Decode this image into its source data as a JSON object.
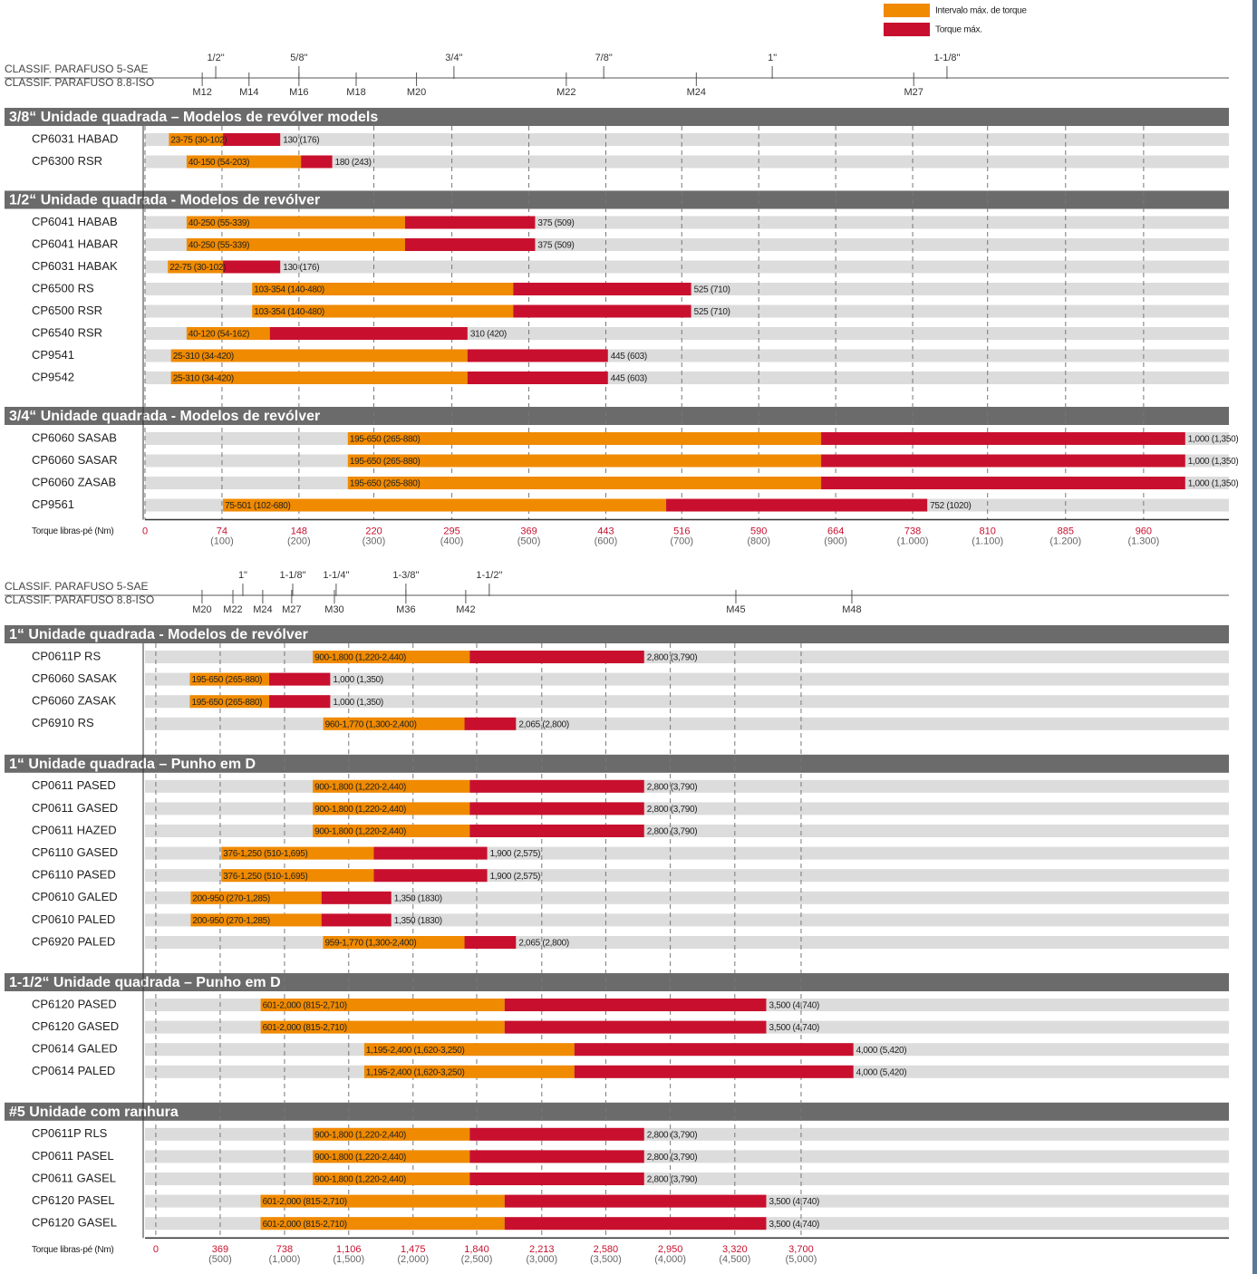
{
  "chart_data": [
    {
      "type": "range_bar",
      "legend": [
        {
          "name": "Intervalo máx. de torque",
          "color": "#f08a00"
        },
        {
          "name": "Torque máx.",
          "color": "#c8102e"
        }
      ],
      "bolts": {
        "sae_title": "CLASSIF. PARAFUSO 5-SAE",
        "iso_title": "CLASSIF. PARAFUSO 8.8-ISO",
        "sae": [
          {
            "label": "1/2\"",
            "value": 68
          },
          {
            "label": "5/8\"",
            "value": 148
          },
          {
            "label": "3/4\"",
            "value": 297
          },
          {
            "label": "7/8\"",
            "value": 441
          },
          {
            "label": "1\"",
            "value": 603
          },
          {
            "label": "1-1/8\"",
            "value": 771
          }
        ],
        "iso": [
          {
            "label": "M12",
            "value": 55
          },
          {
            "label": "M14",
            "value": 100
          },
          {
            "label": "M16",
            "value": 148
          },
          {
            "label": "M18",
            "value": 203
          },
          {
            "label": "M20",
            "value": 261
          },
          {
            "label": "M22",
            "value": 405
          },
          {
            "label": "M24",
            "value": 530
          },
          {
            "label": "M27",
            "value": 739
          }
        ]
      },
      "sections": [
        {
          "title": "3/8“ Unidade quadrada – Modelos de revólver models",
          "rows": [
            {
              "name": "CP6031 HABAD",
              "min": 23,
              "range_max": 75,
              "max": 130,
              "range_label": "23-75 (30-102)",
              "max_label": "130 (176)"
            },
            {
              "name": "CP6300 RSR",
              "min": 40,
              "range_max": 150,
              "max": 180,
              "range_label": "40-150 (54-203)",
              "max_label": "180 (243)"
            }
          ]
        },
        {
          "title": "1/2“ Unidade quadrada - Modelos de revólver",
          "rows": [
            {
              "name": "CP6041 HABAB",
              "min": 40,
              "range_max": 250,
              "max": 375,
              "range_label": "40-250 (55-339)",
              "max_label": "375 (509)"
            },
            {
              "name": "CP6041 HABAR",
              "min": 40,
              "range_max": 250,
              "max": 375,
              "range_label": "40-250 (55-339)",
              "max_label": "375 (509)"
            },
            {
              "name": "CP6031 HABAK",
              "min": 22,
              "range_max": 75,
              "max": 130,
              "range_label": "22-75 (30-102)",
              "max_label": "130 (176)"
            },
            {
              "name": "CP6500 RS",
              "min": 103,
              "range_max": 354,
              "max": 525,
              "range_label": "103-354 (140-480)",
              "max_label": "525 (710)"
            },
            {
              "name": "CP6500 RSR",
              "min": 103,
              "range_max": 354,
              "max": 525,
              "range_label": "103-354 (140-480)",
              "max_label": "525 (710)"
            },
            {
              "name": "CP6540 RSR",
              "min": 40,
              "range_max": 120,
              "max": 310,
              "range_label": "40-120 (54-162)",
              "max_label": "310 (420)"
            },
            {
              "name": "CP9541",
              "min": 25,
              "range_max": 310,
              "max": 445,
              "range_label": "25-310 (34-420)",
              "max_label": "445 (603)"
            },
            {
              "name": "CP9542",
              "min": 25,
              "range_max": 310,
              "max": 445,
              "range_label": "25-310 (34-420)",
              "max_label": "445 (603)"
            }
          ]
        },
        {
          "title": "3/4“ Unidade quadrada - Modelos de revólver",
          "rows": [
            {
              "name": "CP6060 SASAB",
              "min": 195,
              "range_max": 650,
              "max": 1000,
              "range_label": "195-650 (265-880)",
              "max_label": "1,000 (1,350)"
            },
            {
              "name": "CP6060 SASAR",
              "min": 195,
              "range_max": 650,
              "max": 1000,
              "range_label": "195-650 (265-880)",
              "max_label": "1,000 (1,350)"
            },
            {
              "name": "CP6060 ZASAB",
              "min": 195,
              "range_max": 650,
              "max": 1000,
              "range_label": "195-650 (265-880)",
              "max_label": "1,000 (1,350)"
            },
            {
              "name": "CP9561",
              "min": 75,
              "range_max": 501,
              "max": 752,
              "range_label": "75-501 (102-680)",
              "max_label": "752 (1020)"
            }
          ]
        }
      ],
      "x_label": "Torque libras-pé (Nm)",
      "xlim": [
        0,
        1042
      ],
      "xticks": [
        0,
        74,
        148,
        220,
        295,
        369,
        443,
        516,
        590,
        664,
        738,
        810,
        885,
        960
      ],
      "xtick_nm_labels": [
        null,
        "(100)",
        "(200)",
        "(300)",
        "(400)",
        "(500)",
        "(600)",
        "(700)",
        "(800)",
        "(900)",
        "(1.000)",
        "(1.100)",
        "(1.200)",
        "(1.300)"
      ]
    },
    {
      "type": "range_bar",
      "bolts": {
        "sae_title": "CLASSIF. PARAFUSO 5-SAE",
        "iso_title": "CLASSIF. PARAFUSO 8.8-ISO",
        "sae": [
          {
            "label": "1\"",
            "value": 499
          },
          {
            "label": "1-1/8\"",
            "value": 785
          },
          {
            "label": "1-1/4\"",
            "value": 1034
          },
          {
            "label": "1-3/8\"",
            "value": 1434
          },
          {
            "label": "1-1/2\"",
            "value": 1912
          }
        ],
        "iso": [
          {
            "label": "M20",
            "value": 265
          },
          {
            "label": "M22",
            "value": 442
          },
          {
            "label": "M24",
            "value": 613
          },
          {
            "label": "M27",
            "value": 779
          },
          {
            "label": "M30",
            "value": 1024
          },
          {
            "label": "M36",
            "value": 1434
          },
          {
            "label": "M42",
            "value": 1777
          },
          {
            "label": "M45",
            "value": 3326
          },
          {
            "label": "M48",
            "value": 3991
          }
        ]
      },
      "sections": [
        {
          "title": "1“ Unidade quadrada - Modelos de revólver",
          "rows": [
            {
              "name": "CP0611P RS",
              "min": 900,
              "range_max": 1800,
              "max": 2800,
              "range_label": "900-1,800 (1,220-2,440)",
              "max_label": "2,800 (3,790)"
            },
            {
              "name": "CP6060 SASAK",
              "min": 195,
              "range_max": 650,
              "max": 1000,
              "range_label": "195-650 (265-880)",
              "max_label": "1,000 (1,350)"
            },
            {
              "name": "CP6060 ZASAK",
              "min": 195,
              "range_max": 650,
              "max": 1000,
              "range_label": "195-650 (265-880)",
              "max_label": "1,000 (1,350)"
            },
            {
              "name": "CP6910 RS",
              "min": 960,
              "range_max": 1770,
              "max": 2065,
              "range_label": "960-1,770 (1,300-2,400)",
              "max_label": "2,065 (2,800)"
            }
          ]
        },
        {
          "title": "1“ Unidade quadrada – Punho em D",
          "rows": [
            {
              "name": "CP0611 PASED",
              "min": 900,
              "range_max": 1800,
              "max": 2800,
              "range_label": "900-1,800 (1,220-2,440)",
              "max_label": "2,800 (3,790)"
            },
            {
              "name": "CP0611 GASED",
              "min": 900,
              "range_max": 1800,
              "max": 2800,
              "range_label": "900-1,800 (1,220-2,440)",
              "max_label": "2,800 (3,790)"
            },
            {
              "name": "CP0611 HAZED",
              "min": 900,
              "range_max": 1800,
              "max": 2800,
              "range_label": "900-1,800 (1,220-2,440)",
              "max_label": "2,800 (3,790)"
            },
            {
              "name": "CP6110 GASED",
              "min": 376,
              "range_max": 1250,
              "max": 1900,
              "range_label": "376-1,250 (510-1,695)",
              "max_label": "1,900 (2,575)"
            },
            {
              "name": "CP6110 PASED",
              "min": 376,
              "range_max": 1250,
              "max": 1900,
              "range_label": "376-1,250 (510-1,695)",
              "max_label": "1,900 (2,575)"
            },
            {
              "name": "CP0610 GALED",
              "min": 200,
              "range_max": 950,
              "max": 1350,
              "range_label": "200-950 (270-1,285)",
              "max_label": "1,350 (1830)"
            },
            {
              "name": "CP0610 PALED",
              "min": 200,
              "range_max": 950,
              "max": 1350,
              "range_label": "200-950 (270-1,285)",
              "max_label": "1,350 (1830)"
            },
            {
              "name": "CP6920 PALED",
              "min": 959,
              "range_max": 1770,
              "max": 2065,
              "range_label": "959-1,770 (1,300-2,400)",
              "max_label": "2,065 (2,800)"
            }
          ]
        },
        {
          "title": "1-1/2“ Unidade quadrada – Punho em D",
          "rows": [
            {
              "name": "CP6120 PASED",
              "min": 601,
              "range_max": 2000,
              "max": 3500,
              "range_label": "601-2,000 (815-2,710)",
              "max_label": "3,500 (4,740)"
            },
            {
              "name": "CP6120 GASED",
              "min": 601,
              "range_max": 2000,
              "max": 3500,
              "range_label": "601-2,000 (815-2,710)",
              "max_label": "3,500 (4,740)"
            },
            {
              "name": "CP0614 GALED",
              "min": 1195,
              "range_max": 2400,
              "max": 4000,
              "range_label": "1,195-2,400 (1,620-3,250)",
              "max_label": "4,000 (5,420)"
            },
            {
              "name": "CP0614 PALED",
              "min": 1195,
              "range_max": 2400,
              "max": 4000,
              "range_label": "1,195-2,400 (1,620-3,250)",
              "max_label": "4,000 (5,420)"
            }
          ]
        },
        {
          "title": "#5 Unidade com ranhura",
          "rows": [
            {
              "name": "CP0611P RLS",
              "min": 900,
              "range_max": 1800,
              "max": 2800,
              "range_label": "900-1,800 (1,220-2,440)",
              "max_label": "2,800 (3,790)"
            },
            {
              "name": "CP0611 PASEL",
              "min": 900,
              "range_max": 1800,
              "max": 2800,
              "range_label": "900-1,800 (1,220-2,440)",
              "max_label": "2,800 (3,790)"
            },
            {
              "name": "CP0611 GASEL",
              "min": 900,
              "range_max": 1800,
              "max": 2800,
              "range_label": "900-1,800 (1,220-2,440)",
              "max_label": "2,800 (3,790)"
            },
            {
              "name": "CP6120 PASEL",
              "min": 601,
              "range_max": 2000,
              "max": 3500,
              "range_label": "601-2,000 (815-2,710)",
              "max_label": "3,500 (4,740)"
            },
            {
              "name": "CP6120 GASEL",
              "min": 601,
              "range_max": 2000,
              "max": 3500,
              "range_label": "601-2,000 (815-2,710)",
              "max_label": "3,500 (4,740)"
            }
          ]
        }
      ],
      "x_label": "Torque libras-pé (Nm)",
      "xlim": [
        -62,
        6153
      ],
      "xticks": [
        0,
        369,
        738,
        {
          "value": 1106,
          "label": "1,106"
        },
        {
          "value": 1475,
          "label": "1,475"
        },
        {
          "value": 1840,
          "label": "1,840"
        },
        {
          "value": 2213,
          "label": "2,213"
        },
        {
          "value": 2580,
          "label": "2,580"
        },
        {
          "value": 2950,
          "label": "2,950"
        },
        {
          "value": 3320,
          "label": "3,320"
        },
        {
          "value": 3700,
          "label": "3,700"
        }
      ],
      "xtick_nm_labels": [
        null,
        "(500)",
        "(1,000)",
        "(1,500)",
        "(2,000)",
        "(2,500)",
        "(3,000)",
        "(3,500)",
        "(4,000)",
        "(4,500)",
        "(5,000)"
      ]
    }
  ]
}
